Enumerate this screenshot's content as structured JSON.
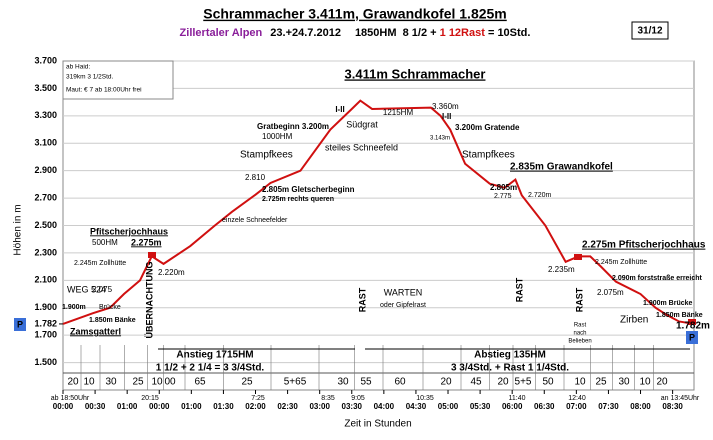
{
  "chart_data": {
    "type": "line",
    "title": "Schrammacher 3.411m, Grawandkofel 1.825m",
    "subtitle": {
      "region": "Zillertaler Alpen",
      "dates": "23.+24.7.2012",
      "stats": "1850HM  8 1/2 + ",
      "rest": "1 12Rast",
      "total": " = 10Std."
    },
    "badge": "31/12",
    "ylabel": "Höhen in m",
    "xlabel": "Zeit in Stunden",
    "xlim": [
      0,
      590
    ],
    "ylim": [
      1300,
      3700
    ],
    "yticks": [
      {
        "value": 1500,
        "label": "1.500"
      },
      {
        "value": 1700,
        "label": "1.700"
      },
      {
        "value": 1900,
        "label": "1.900"
      },
      {
        "value": 2100,
        "label": "2.100"
      },
      {
        "value": 2300,
        "label": "2.300"
      },
      {
        "value": 2500,
        "label": "2.500"
      },
      {
        "value": 2700,
        "label": "2.700"
      },
      {
        "value": 2900,
        "label": "2.900"
      },
      {
        "value": 3100,
        "label": "3.100"
      },
      {
        "value": 3300,
        "label": "3.300"
      },
      {
        "value": 3500,
        "label": "3.500"
      },
      {
        "value": 3700,
        "label": "3.700"
      }
    ],
    "marker_ticks": [
      {
        "value": 1782,
        "label": "1.782"
      }
    ],
    "xticks": [
      {
        "value": 0,
        "label": "00:00"
      },
      {
        "value": 30,
        "label": "00:30"
      },
      {
        "value": 60,
        "label": "01:00"
      },
      {
        "value": 90,
        "label": "00:00"
      },
      {
        "value": 120,
        "label": "01:00"
      },
      {
        "value": 150,
        "label": "01:30"
      },
      {
        "value": 180,
        "label": "02:00"
      },
      {
        "value": 210,
        "label": "02:30"
      },
      {
        "value": 240,
        "label": "03:00"
      },
      {
        "value": 270,
        "label": "03:30"
      },
      {
        "value": 300,
        "label": "04:00"
      },
      {
        "value": 330,
        "label": "04:30"
      },
      {
        "value": 360,
        "label": "05:00"
      },
      {
        "value": 390,
        "label": "05:30"
      },
      {
        "value": 420,
        "label": "06:00"
      },
      {
        "value": 450,
        "label": "06:30"
      },
      {
        "value": 480,
        "label": "07:00"
      },
      {
        "value": 510,
        "label": "07:30"
      },
      {
        "value": 540,
        "label": "08:00"
      },
      {
        "value": 570,
        "label": "08:30"
      }
    ],
    "grid": true,
    "color": "#d01010",
    "x": [
      0,
      28,
      44,
      57,
      72,
      83,
      94,
      119,
      142,
      158,
      180,
      194,
      222,
      250,
      270,
      278,
      289,
      344,
      353,
      362,
      376,
      399,
      413,
      423,
      429,
      451,
      470,
      482,
      493,
      503,
      517,
      540,
      554,
      564,
      576,
      590
    ],
    "values": [
      1782,
      1860,
      1900,
      2000,
      2100,
      2275,
      2220,
      2350,
      2500,
      2600,
      2725,
      2810,
      2900,
      3200,
      3350,
      3411,
      3350,
      3360,
      3300,
      3200,
      2950,
      2805,
      2775,
      2835,
      2720,
      2500,
      2235,
      2275,
      2275,
      2200,
      2090,
      2000,
      1900,
      1850,
      1800,
      1782
    ],
    "durations": [
      20,
      10,
      30,
      25,
      10,
      "00",
      65,
      25,
      "5+65",
      30,
      55,
      60,
      20,
      45,
      20,
      "5+5",
      50,
      10,
      25,
      30,
      10,
      20
    ],
    "clock": [
      "ab 18:50Uhr",
      "20:15",
      "7:25",
      "8:35",
      "9:05",
      "10:35",
      "11:40",
      "12:40",
      "an 13:45Uhr"
    ],
    "infobox": [
      "ab Haid:",
      "319km 3 1/2Std.",
      "Maut: € 7 ab 18:00Uhr frei"
    ],
    "annotations": [
      "3.411m Schrammacher",
      "1215HM",
      "3.360m",
      "3.200m Gratende",
      "I-II",
      "I-II",
      "Südgrat",
      "Gratbeginn 3.200m",
      "1000HM",
      "steiles Schneefeld",
      "Stampfkees",
      "Stampfkees",
      "2.810",
      "2.805m Gletscherbeginn",
      "2.725m rechts queren",
      "einzele Schneefelder",
      "3.143m",
      "2.805m",
      "2.775",
      "2.835m Grawandkofel",
      "2.720m",
      "Pfitscherjochhaus",
      "500HM",
      "2.275m",
      "2.245m Zollhütte",
      "2.220m",
      "WEG 524",
      "2.075",
      "1.900m",
      "Brücke",
      "1.850m Bänke",
      "Zamsgatterl",
      "ÜBERNACHTUNG",
      "RAST",
      "RAST",
      "RAST",
      "WARTEN",
      "oder Gipfelrast",
      "2.275m Pfitscherjochhaus",
      "2.245m Zollhütte",
      "2.235m",
      "2.090m forststraße erreicht",
      "2.075m",
      "1.900m Brücke",
      "1.850m Bänke",
      "1.782m",
      "Zirben",
      "Rast",
      "nach",
      "Belieben",
      "Anstieg  1715HM",
      "1 1/2 + 2 1/4 = 3 3/4Std.",
      "Abstieg 135HM",
      "3 3/4Std. + Rast 1 1/4Std."
    ],
    "parking": [
      "P",
      "P"
    ]
  }
}
